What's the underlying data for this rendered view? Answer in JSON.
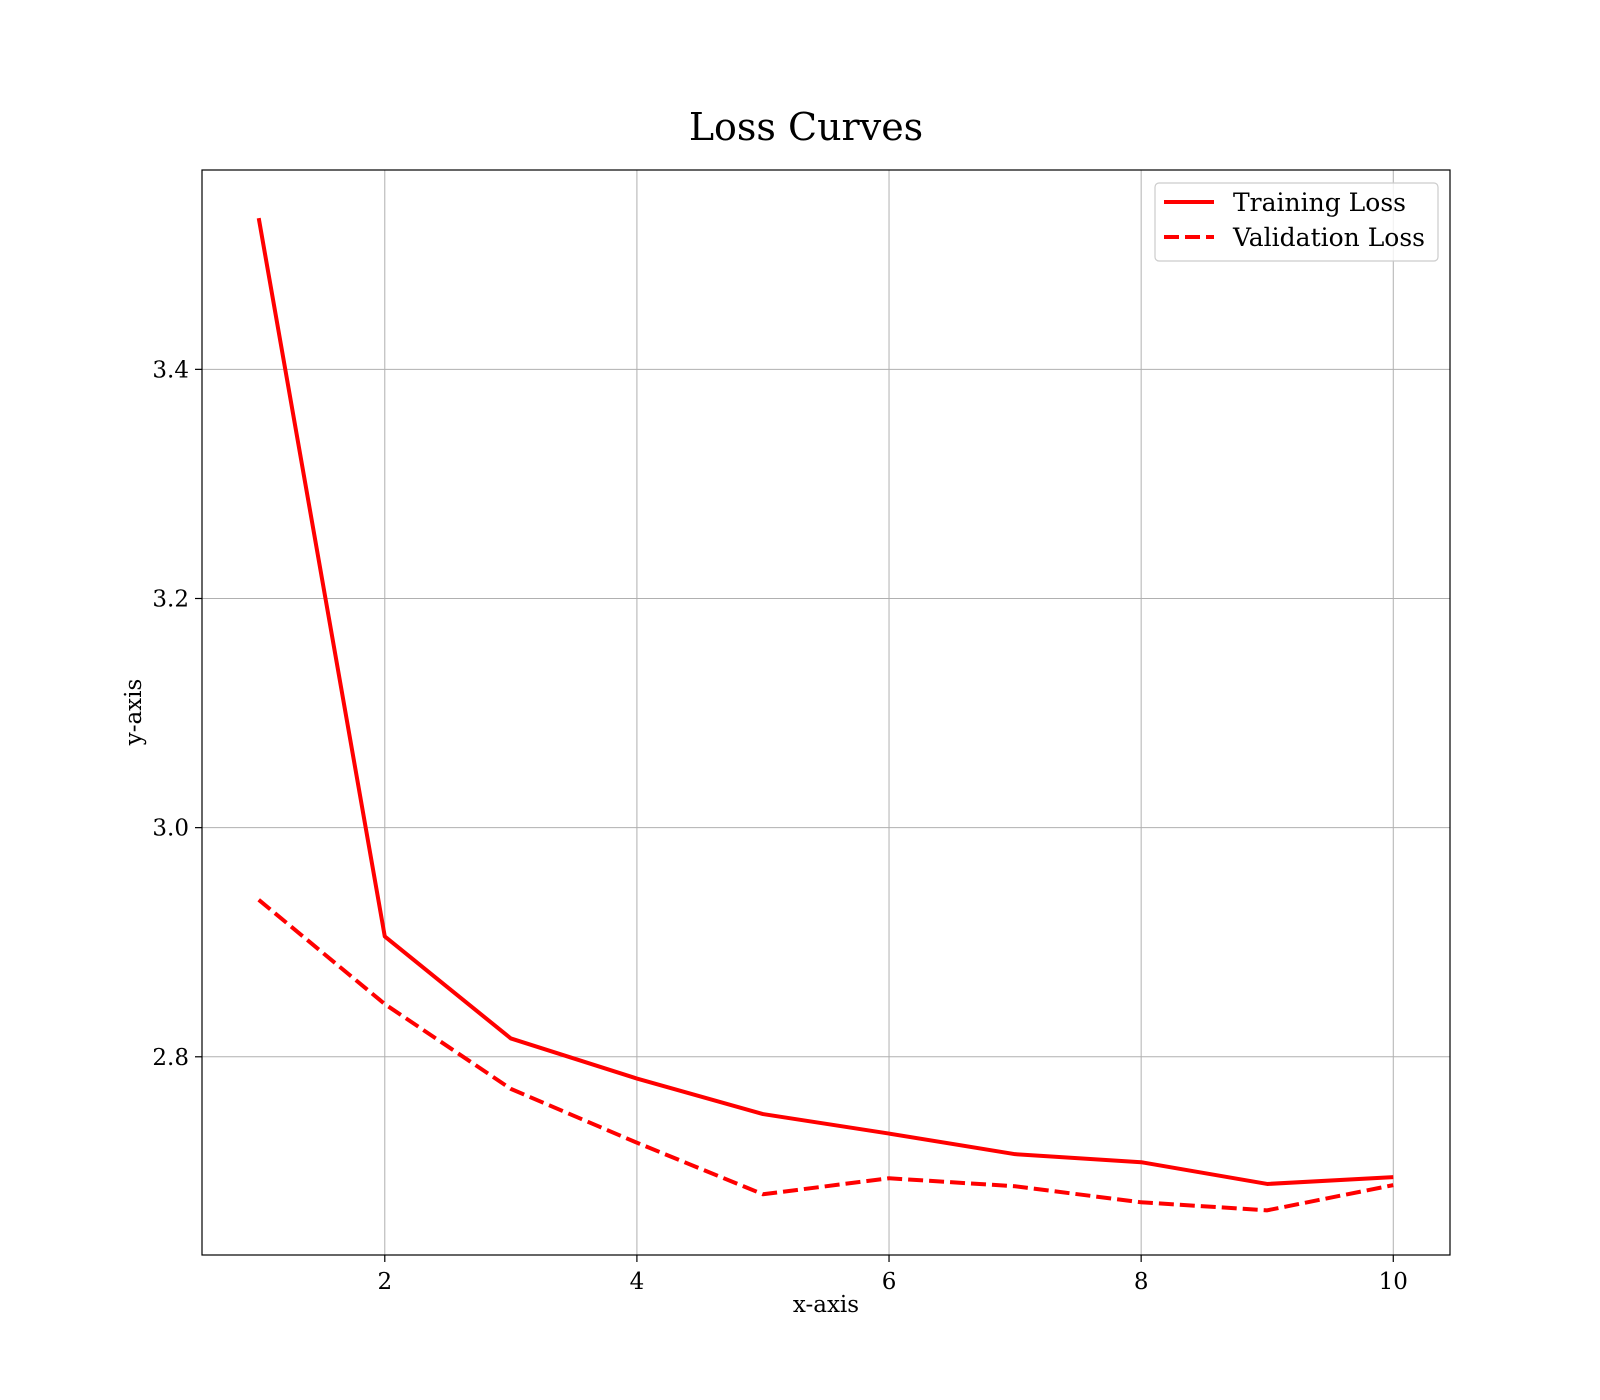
{
  "chart_data": {
    "type": "line",
    "title": "Loss Curves",
    "xlabel": "x-axis",
    "ylabel": "y-axis",
    "x": [
      1,
      2,
      3,
      4,
      5,
      6,
      7,
      8,
      9,
      10
    ],
    "xlim": [
      0.55,
      10.45
    ],
    "ylim": [
      2.627,
      3.574
    ],
    "xticks": [
      2,
      4,
      6,
      8,
      10
    ],
    "yticks": [
      2.8,
      3.0,
      3.2,
      3.4
    ],
    "grid": true,
    "legend_position": "top-right",
    "series": [
      {
        "name": "Training Loss",
        "style": "solid",
        "color": "#ff0000",
        "values": [
          3.532,
          2.905,
          2.816,
          2.781,
          2.75,
          2.733,
          2.715,
          2.708,
          2.689,
          2.695
        ]
      },
      {
        "name": "Validation Loss",
        "style": "dashed",
        "color": "#ff0000",
        "values": [
          2.937,
          2.846,
          2.772,
          2.725,
          2.68,
          2.694,
          2.687,
          2.673,
          2.666,
          2.688
        ]
      }
    ]
  }
}
